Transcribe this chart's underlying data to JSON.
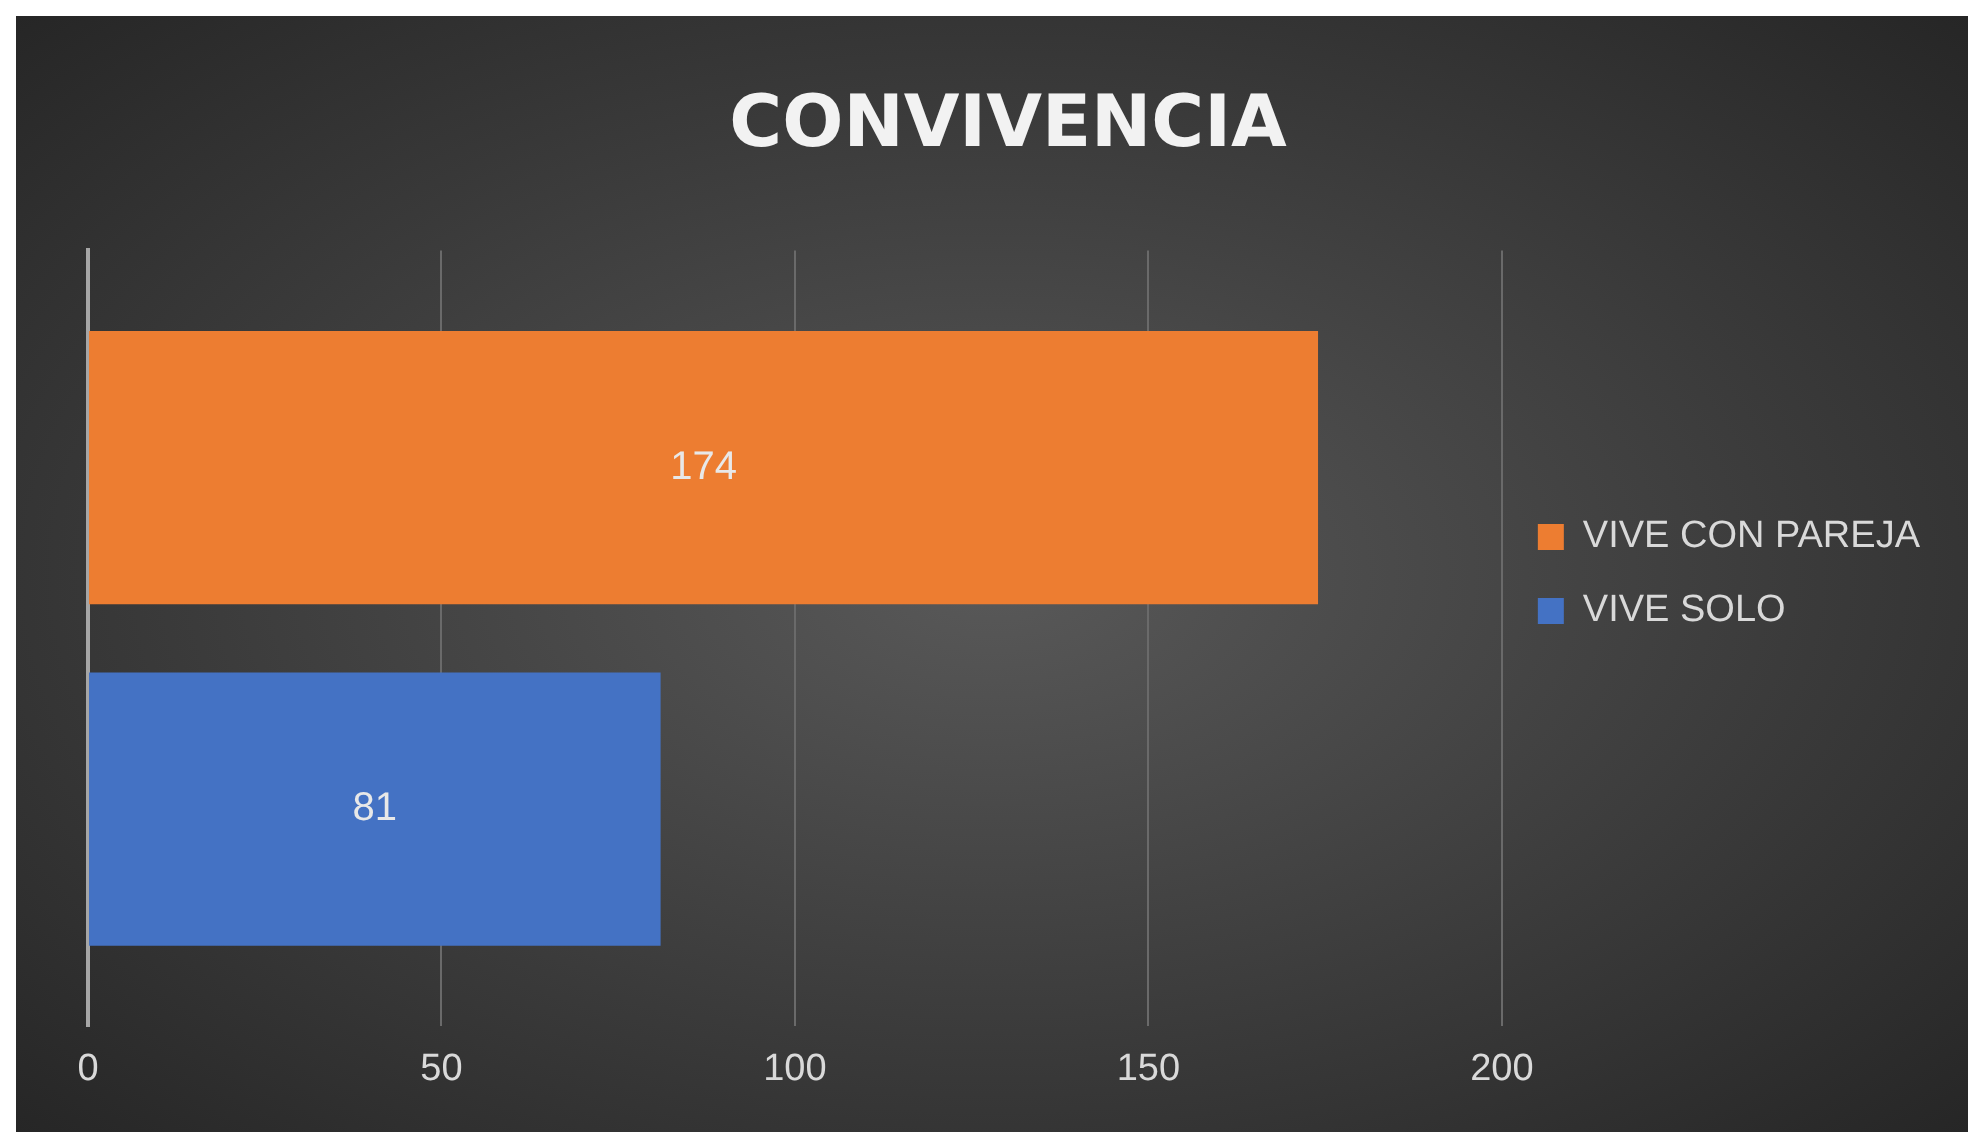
{
  "chart_data": {
    "type": "bar",
    "orientation": "horizontal",
    "title": "CONVIVENCIA",
    "categories": [
      null
    ],
    "series": [
      {
        "name": "VIVE CON PAREJA",
        "color": "#ed7d31",
        "values": [
          174
        ]
      },
      {
        "name": "VIVE SOLO",
        "color": "#4472c4",
        "values": [
          81
        ]
      }
    ],
    "xlim": [
      0,
      200
    ],
    "xticks": [
      0,
      50,
      100,
      150,
      200
    ],
    "grid": "x",
    "legend": "right",
    "data_labels": true
  }
}
